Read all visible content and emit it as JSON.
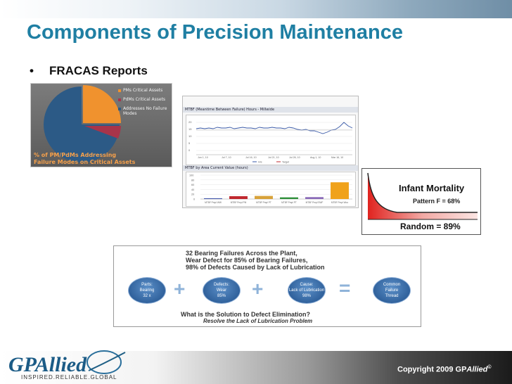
{
  "slide": {
    "title": "Components of Precision Maintenance",
    "bullet_char": "•",
    "bullet_text": "FRACAS Reports"
  },
  "pie_panel": {
    "legend": [
      {
        "label": "PMs Critical Assets",
        "color": "#f0922e"
      },
      {
        "label": "PdMs Critical Assets",
        "color": "#a8344a"
      },
      {
        "label": "Addresses No Failure Modes",
        "color": "#2c5a86"
      }
    ],
    "caption_line1": "% of PM/PdMs Addressing",
    "caption_line2": "Failure Modes on Critical Assets"
  },
  "mtbf_panel": {
    "header": "MTBF (Meantime Between Failure) Hours - Millwide",
    "y_ticks": [
      "20",
      "15",
      "10",
      "5",
      "0"
    ],
    "x_ticks": [
      "Jun 1, 10",
      "Jul 7, 10",
      "Jul 16, 10",
      "Jul 21, 10",
      "Jul 26, 10",
      "Aug 1, 10",
      "Mar 16, 10"
    ],
    "legend_a": "Hrs",
    "legend_b": "Target"
  },
  "bar_panel": {
    "header": "MTBF by Area Current Value (hours)",
    "y_ticks": [
      "100",
      "80",
      "60",
      "40",
      "20",
      "0"
    ],
    "categories": [
      "MTBF Pmpl WW",
      "MTBF Pmpl PM",
      "MTBF Pmpl PT",
      "MTBF Pmpl PT",
      "MTBF Pmpl SWF",
      "MTBF Pmpl Woo"
    ]
  },
  "chart_data": {
    "type": "bar",
    "title": "MTBF by Area Current Value (hours)",
    "categories": [
      "MTBF Pmpl WW",
      "MTBF Pmpl PM",
      "MTBF Pmpl PT",
      "MTBF Pmpl PT",
      "MTBF Pmpl SWF",
      "MTBF Pmpl Woo"
    ],
    "values": [
      3,
      12,
      13,
      7,
      8,
      70
    ],
    "colors": [
      "#3b4fa8",
      "#c0282f",
      "#d8a23a",
      "#2f8f3a",
      "#8a6ab8",
      "#f0a21a"
    ],
    "ylim": [
      0,
      100
    ]
  },
  "bathtub_panel": {
    "title": "Infant Mortality",
    "pattern": "Pattern F = 68%",
    "random": "Random = 89%"
  },
  "bearing_panel": {
    "heading_line1": "32 Bearing Failures Across the Plant,",
    "heading_line2": "Wear Defect for 85% of Bearing Failures,",
    "heading_line3": "98% of Defects Caused by Lack of Lubrication",
    "ovals": [
      {
        "l1": "Parts:",
        "l2": "Bearing",
        "l3": "32 x"
      },
      {
        "l1": "Defects:",
        "l2": "Wear",
        "l3": "85%"
      },
      {
        "l1": "Cause:",
        "l2": "Lack of Lubrication",
        "l3": "98%"
      },
      {
        "l1": "Common",
        "l2": "Failure",
        "l3": "Thread"
      }
    ],
    "plus": "+",
    "equals": "=",
    "question": "What is the Solution to Defect Elimination?",
    "answer": "Resolve the Lack of Lubrication Problem"
  },
  "footer": {
    "logo_text": "GPAllied",
    "tagline": "INSPIRED.RELIABLE.GLOBAL",
    "copyright_prefix": "Copyright 2009 GP",
    "copyright_brand": "Allied",
    "copyright_sup": "©"
  }
}
